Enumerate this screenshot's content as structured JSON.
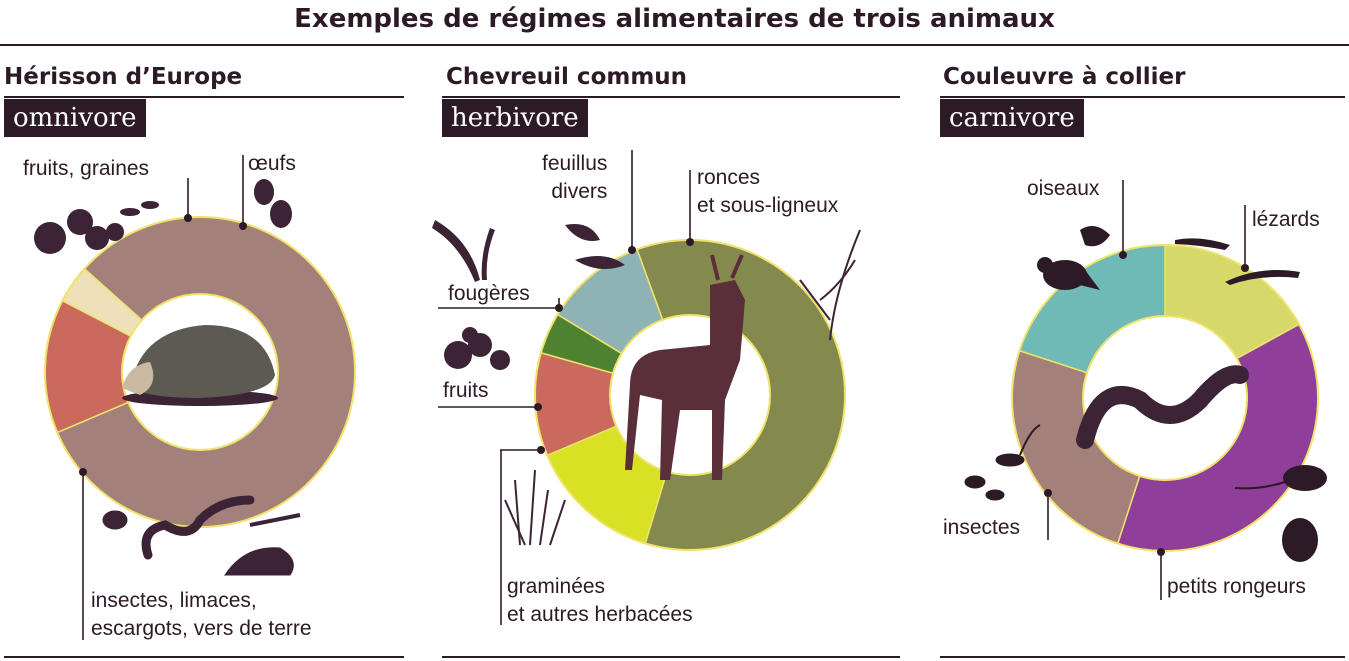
{
  "title": "Exemples de régimes alimentaires de trois animaux",
  "panels": [
    {
      "name": "Hérisson d’Europe",
      "regime": "omnivore"
    },
    {
      "name": "Chevreuil commun",
      "regime": "herbivore"
    },
    {
      "name": "Couleuvre à collier",
      "regime": "carnivore"
    }
  ],
  "labels": {
    "herisson": [
      "fruits, graines",
      "œufs",
      "insectes, limaces,\nescargots, vers de terre"
    ],
    "chevreuil": [
      "feuillus\ndivers",
      "ronces\net sous-ligneux",
      "fougères",
      "fruits",
      "graminées\net autres herbacées"
    ],
    "couleuvre": [
      "oiseaux",
      "lézards",
      "insectes",
      "petits rongeurs"
    ]
  },
  "colors": {
    "dark": "#2d1a27",
    "ring_border": "#f0e26a",
    "insects_brown": "#a3807a",
    "fruits_red": "#c96a5c",
    "eggs_cream": "#efe0b8",
    "ronces_olive": "#848a4d",
    "feuillus_teal": "#8fb2b4",
    "fougeres_green": "#4f8230",
    "graminees_yellow": "#d9e125",
    "oiseaux_teal": "#6fb9b6",
    "lezards_yellow": "#d6d96a",
    "rongeurs_purple": "#8f3f99"
  },
  "chart_data": [
    {
      "type": "pie",
      "title": "Hérisson d’Europe",
      "subtitle": "omnivore",
      "slices": [
        {
          "label": "fruits, graines",
          "value": 14
        },
        {
          "label": "œufs",
          "value": 4
        },
        {
          "label": "insectes, limaces, escargots, vers de terre",
          "value": 82
        }
      ]
    },
    {
      "type": "pie",
      "title": "Chevreuil commun",
      "subtitle": "herbivore",
      "slices": [
        {
          "label": "ronces et sous-ligneux",
          "value": 56
        },
        {
          "label": "graminées et autres herbacées",
          "value": 13
        },
        {
          "label": "fruits",
          "value": 10
        },
        {
          "label": "fougères",
          "value": 4
        },
        {
          "label": "feuillus divers",
          "value": 10
        }
      ]
    },
    {
      "type": "pie",
      "title": "Couleuvre à collier",
      "subtitle": "carnivore",
      "slices": [
        {
          "label": "lézards",
          "value": 17
        },
        {
          "label": "petits rongeurs",
          "value": 38
        },
        {
          "label": "insectes",
          "value": 25
        },
        {
          "label": "oiseaux",
          "value": 20
        }
      ]
    }
  ]
}
